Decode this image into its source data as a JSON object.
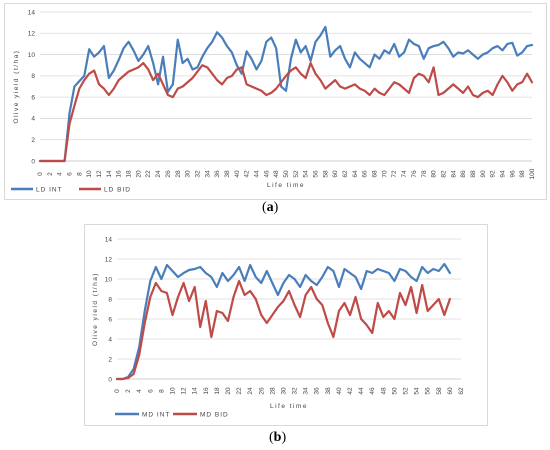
{
  "captions": {
    "a": "a",
    "b": "b"
  },
  "colors": {
    "blue": "#4a7ebb",
    "red": "#be4b48",
    "grid": "#d9d9d9"
  },
  "chart_data": [
    {
      "id": "a",
      "type": "line",
      "title": "",
      "xlabel": "Life time",
      "ylabel": "Olive yield (t/ha)",
      "ylim": [
        0,
        14
      ],
      "yticks": [
        0,
        2,
        4,
        6,
        8,
        10,
        12,
        14
      ],
      "xticks": [
        0,
        2,
        4,
        6,
        8,
        10,
        12,
        14,
        16,
        18,
        20,
        22,
        24,
        26,
        28,
        30,
        32,
        34,
        36,
        38,
        40,
        42,
        44,
        46,
        48,
        50,
        52,
        54,
        56,
        58,
        60,
        62,
        64,
        66,
        68,
        70,
        72,
        74,
        76,
        78,
        80,
        82,
        84,
        86,
        88,
        90,
        92,
        94,
        96,
        98,
        100
      ],
      "xlim": [
        0,
        100
      ],
      "grid": true,
      "legend": "bottom-left",
      "x": [
        0,
        1,
        2,
        3,
        4,
        5,
        6,
        7,
        8,
        9,
        10,
        11,
        12,
        13,
        14,
        15,
        16,
        17,
        18,
        19,
        20,
        21,
        22,
        23,
        24,
        25,
        26,
        27,
        28,
        29,
        30,
        31,
        32,
        33,
        34,
        35,
        36,
        37,
        38,
        39,
        40,
        41,
        42,
        43,
        44,
        45,
        46,
        47,
        48,
        49,
        50,
        51,
        52,
        53,
        54,
        55,
        56,
        57,
        58,
        59,
        60,
        61,
        62,
        63,
        64,
        65,
        66,
        67,
        68,
        69,
        70,
        71,
        72,
        73,
        74,
        75,
        76,
        77,
        78,
        79,
        80,
        81,
        82,
        83,
        84,
        85,
        86,
        87,
        88,
        89,
        90,
        91,
        92,
        93,
        94,
        95,
        96,
        97,
        98,
        99,
        100
      ],
      "series": [
        {
          "name": "LD INT",
          "color": "#4a7ebb",
          "values": [
            0,
            0,
            0,
            0,
            0,
            0,
            4.5,
            7.0,
            7.5,
            8.0,
            10.5,
            9.8,
            10.2,
            10.8,
            7.8,
            8.5,
            9.5,
            10.6,
            11.2,
            10.4,
            9.4,
            10.0,
            10.8,
            9.2,
            7.2,
            9.8,
            6.5,
            7.2,
            11.4,
            9.2,
            9.6,
            8.6,
            8.8,
            9.8,
            10.6,
            11.2,
            12.1,
            11.6,
            10.8,
            10.2,
            9.0,
            8.2,
            10.3,
            9.6,
            8.6,
            9.4,
            11.2,
            11.6,
            10.6,
            7.0,
            6.6,
            9.6,
            11.4,
            10.2,
            10.8,
            9.4,
            11.2,
            11.8,
            12.6,
            9.8,
            10.4,
            10.8,
            9.6,
            8.8,
            10.2,
            9.6,
            9.2,
            8.8,
            10.0,
            9.6,
            10.4,
            10.1,
            11.0,
            9.8,
            10.2,
            11.4,
            11.0,
            10.8,
            9.6,
            10.6,
            10.8,
            10.9,
            11.2,
            10.6,
            9.8,
            10.2,
            10.1,
            10.4,
            10.0,
            9.6,
            10.0,
            10.2,
            10.6,
            10.8,
            10.4,
            11.0,
            11.1,
            9.9,
            10.2,
            10.8,
            10.9
          ]
        },
        {
          "name": "LD BID",
          "color": "#be4b48",
          "values": [
            0,
            0,
            0,
            0,
            0,
            0,
            3.5,
            5.2,
            6.8,
            7.6,
            8.2,
            8.5,
            7.2,
            6.8,
            6.2,
            6.8,
            7.6,
            8.0,
            8.4,
            8.6,
            8.8,
            9.2,
            8.6,
            7.6,
            8.2,
            7.2,
            6.2,
            6.0,
            6.8,
            7.0,
            7.4,
            7.8,
            8.4,
            9.0,
            8.8,
            8.2,
            7.6,
            7.2,
            7.8,
            8.0,
            8.6,
            8.8,
            7.2,
            7.0,
            6.8,
            6.6,
            6.2,
            6.4,
            6.8,
            7.4,
            8.0,
            8.5,
            8.8,
            8.2,
            7.8,
            9.2,
            8.2,
            7.6,
            6.8,
            7.2,
            7.6,
            7.0,
            6.8,
            7.0,
            7.2,
            6.8,
            6.6,
            6.2,
            6.8,
            6.4,
            6.2,
            6.8,
            7.4,
            7.2,
            6.8,
            6.4,
            7.8,
            8.2,
            8.0,
            7.4,
            8.8,
            6.2,
            6.4,
            6.8,
            7.2,
            6.8,
            6.4,
            7.0,
            6.2,
            6.0,
            6.4,
            6.6,
            6.2,
            7.2,
            8.0,
            7.4,
            6.6,
            7.2,
            7.4,
            8.2,
            7.4
          ]
        }
      ]
    },
    {
      "id": "b",
      "type": "line",
      "title": "",
      "xlabel": "Life time",
      "ylabel": "Olive yield (t/ha)",
      "ylim": [
        0,
        14
      ],
      "yticks": [
        0,
        2,
        4,
        6,
        8,
        10,
        12,
        14
      ],
      "xticks": [
        0,
        2,
        4,
        6,
        8,
        10,
        12,
        14,
        16,
        18,
        20,
        22,
        24,
        26,
        28,
        30,
        32,
        34,
        36,
        38,
        40,
        42,
        44,
        46,
        48,
        50,
        52,
        54,
        56,
        58,
        60,
        62
      ],
      "xlim": [
        0,
        62
      ],
      "grid": true,
      "legend": "bottom-left",
      "x": [
        0,
        1,
        2,
        3,
        4,
        5,
        6,
        7,
        8,
        9,
        10,
        11,
        12,
        13,
        14,
        15,
        16,
        17,
        18,
        19,
        20,
        21,
        22,
        23,
        24,
        25,
        26,
        27,
        28,
        29,
        30,
        31,
        32,
        33,
        34,
        35,
        36,
        37,
        38,
        39,
        40,
        41,
        42,
        43,
        44,
        45,
        46,
        47,
        48,
        49,
        50,
        51,
        52,
        53,
        54,
        55,
        56,
        57,
        58,
        59,
        60
      ],
      "series": [
        {
          "name": "MD INT",
          "color": "#4a7ebb",
          "values": [
            0,
            0,
            0.2,
            1.0,
            3.2,
            6.8,
            9.8,
            11.2,
            10.0,
            11.4,
            10.8,
            10.2,
            10.6,
            10.9,
            11.0,
            11.2,
            10.6,
            10.2,
            9.2,
            10.6,
            9.8,
            10.4,
            11.2,
            9.8,
            11.4,
            10.2,
            9.6,
            10.8,
            9.6,
            8.4,
            9.6,
            10.4,
            10.0,
            9.2,
            10.4,
            9.8,
            9.4,
            10.2,
            11.2,
            10.8,
            9.2,
            11.0,
            10.6,
            10.2,
            9.0,
            10.8,
            10.6,
            11.0,
            10.8,
            10.6,
            9.8,
            11.0,
            10.8,
            10.2,
            9.8,
            11.2,
            10.6,
            11.0,
            10.8,
            11.5,
            10.6
          ]
        },
        {
          "name": "MD BID",
          "color": "#be4b48",
          "values": [
            0,
            0,
            0.1,
            0.5,
            2.4,
            5.6,
            8.2,
            9.6,
            8.8,
            8.6,
            6.4,
            8.2,
            9.6,
            7.8,
            9.2,
            5.2,
            7.8,
            4.2,
            6.8,
            6.6,
            5.8,
            8.2,
            9.8,
            8.4,
            8.8,
            8.0,
            6.4,
            5.6,
            6.4,
            7.2,
            7.8,
            8.8,
            7.4,
            6.2,
            8.4,
            9.2,
            8.0,
            7.4,
            5.6,
            4.2,
            6.8,
            7.6,
            6.4,
            8.2,
            6.0,
            5.4,
            4.6,
            7.6,
            6.2,
            6.8,
            6.0,
            8.6,
            7.4,
            9.2,
            6.6,
            9.4,
            6.8,
            7.4,
            8.0,
            6.4,
            8.0
          ]
        }
      ]
    }
  ]
}
